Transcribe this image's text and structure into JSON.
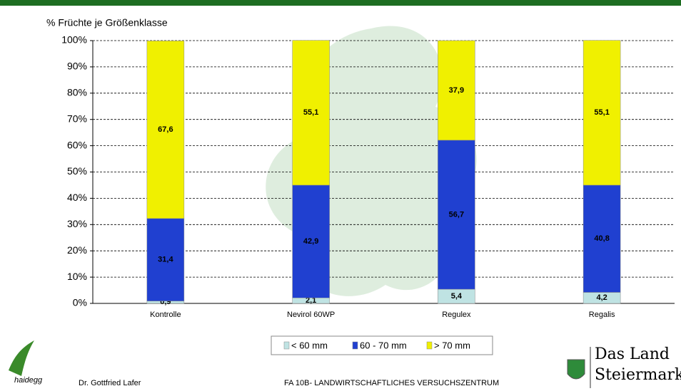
{
  "chart_data": {
    "type": "stacked_bar",
    "y_label": "% Früchte je Größenklasse",
    "categories": [
      "Kontrolle",
      "Nevirol 60WP",
      "Regulex",
      "Regalis"
    ],
    "series": [
      {
        "name": "< 60 mm",
        "color": "#bfe3e3",
        "values": [
          0.9,
          2.1,
          5.4,
          4.2
        ],
        "value_labels": [
          "0,9",
          "2,1",
          "5,4",
          "4,2"
        ]
      },
      {
        "name": "60 - 70 mm",
        "color": "#2040d0",
        "values": [
          31.4,
          42.9,
          56.7,
          40.8
        ],
        "value_labels": [
          "31,4",
          "42,9",
          "56,7",
          "40,8"
        ]
      },
      {
        "name": "> 70 mm",
        "color": "#f0f000",
        "values": [
          67.6,
          55.1,
          37.9,
          55.1
        ],
        "value_labels": [
          "67,6",
          "55,1",
          "37,9",
          "55,1"
        ]
      }
    ],
    "ylim": [
      0,
      100
    ],
    "yticks": [
      {
        "value": 0,
        "label": "0%"
      },
      {
        "value": 10,
        "label": "10%"
      },
      {
        "value": 20,
        "label": "20%"
      },
      {
        "value": 30,
        "label": "30%"
      },
      {
        "value": 40,
        "label": "40%"
      },
      {
        "value": 50,
        "label": "50%"
      },
      {
        "value": 60,
        "label": "60%"
      },
      {
        "value": 70,
        "label": "70%"
      },
      {
        "value": 80,
        "label": "80%"
      },
      {
        "value": 90,
        "label": "90%"
      },
      {
        "value": 100,
        "label": "100%"
      }
    ],
    "grid": true
  },
  "footer": {
    "logo": "haidegg",
    "author": "Dr. Gottfried Lafer",
    "institution": "FA 10B- LANDWIRTSCHAFTLICHES VERSUCHSZENTRUM",
    "brand_line1": "Das Land",
    "brand_line2": "Steiermark"
  }
}
